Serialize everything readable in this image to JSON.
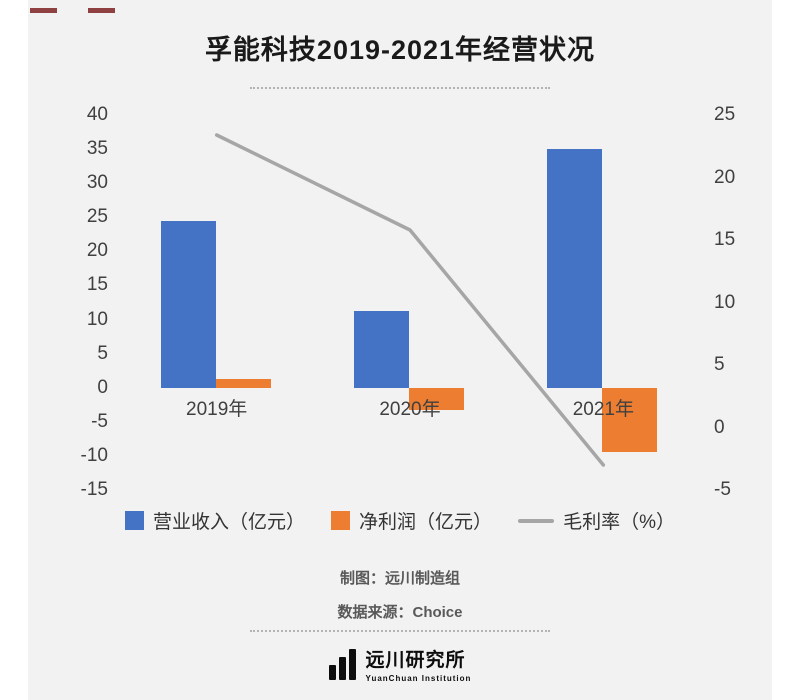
{
  "title": "孚能科技2019-2021年经营状况",
  "chart_data": {
    "type": "bar+line",
    "categories": [
      "2019年",
      "2020年",
      "2021年"
    ],
    "series": [
      {
        "name": "营业收入（亿元）",
        "type": "bar",
        "axis": "left",
        "color": "#4472c4",
        "values": [
          24.5,
          11.2,
          35
        ]
      },
      {
        "name": "净利润（亿元）",
        "type": "bar",
        "axis": "left",
        "color": "#ed7d31",
        "values": [
          1.3,
          -3.3,
          -9.5
        ]
      },
      {
        "name": "毛利率（%）",
        "type": "line",
        "axis": "right",
        "color": "#a6a6a6",
        "values": [
          23.4,
          15.8,
          -3.0
        ]
      }
    ],
    "left_axis": {
      "min": -15,
      "max": 40,
      "step": 5,
      "ticks": [
        40,
        35,
        30,
        25,
        20,
        15,
        10,
        5,
        0,
        -5,
        -10,
        -15
      ]
    },
    "right_axis": {
      "min": -5,
      "max": 25,
      "step": 5,
      "ticks": [
        25,
        20,
        15,
        10,
        5,
        0,
        -5
      ]
    },
    "grid": false,
    "legend_position": "bottom"
  },
  "credits": {
    "made_by": "制图：远川制造组",
    "source": "数据来源：Choice"
  },
  "logo": {
    "name": "远川研究所",
    "subtitle": "YuanChuan Institution"
  }
}
